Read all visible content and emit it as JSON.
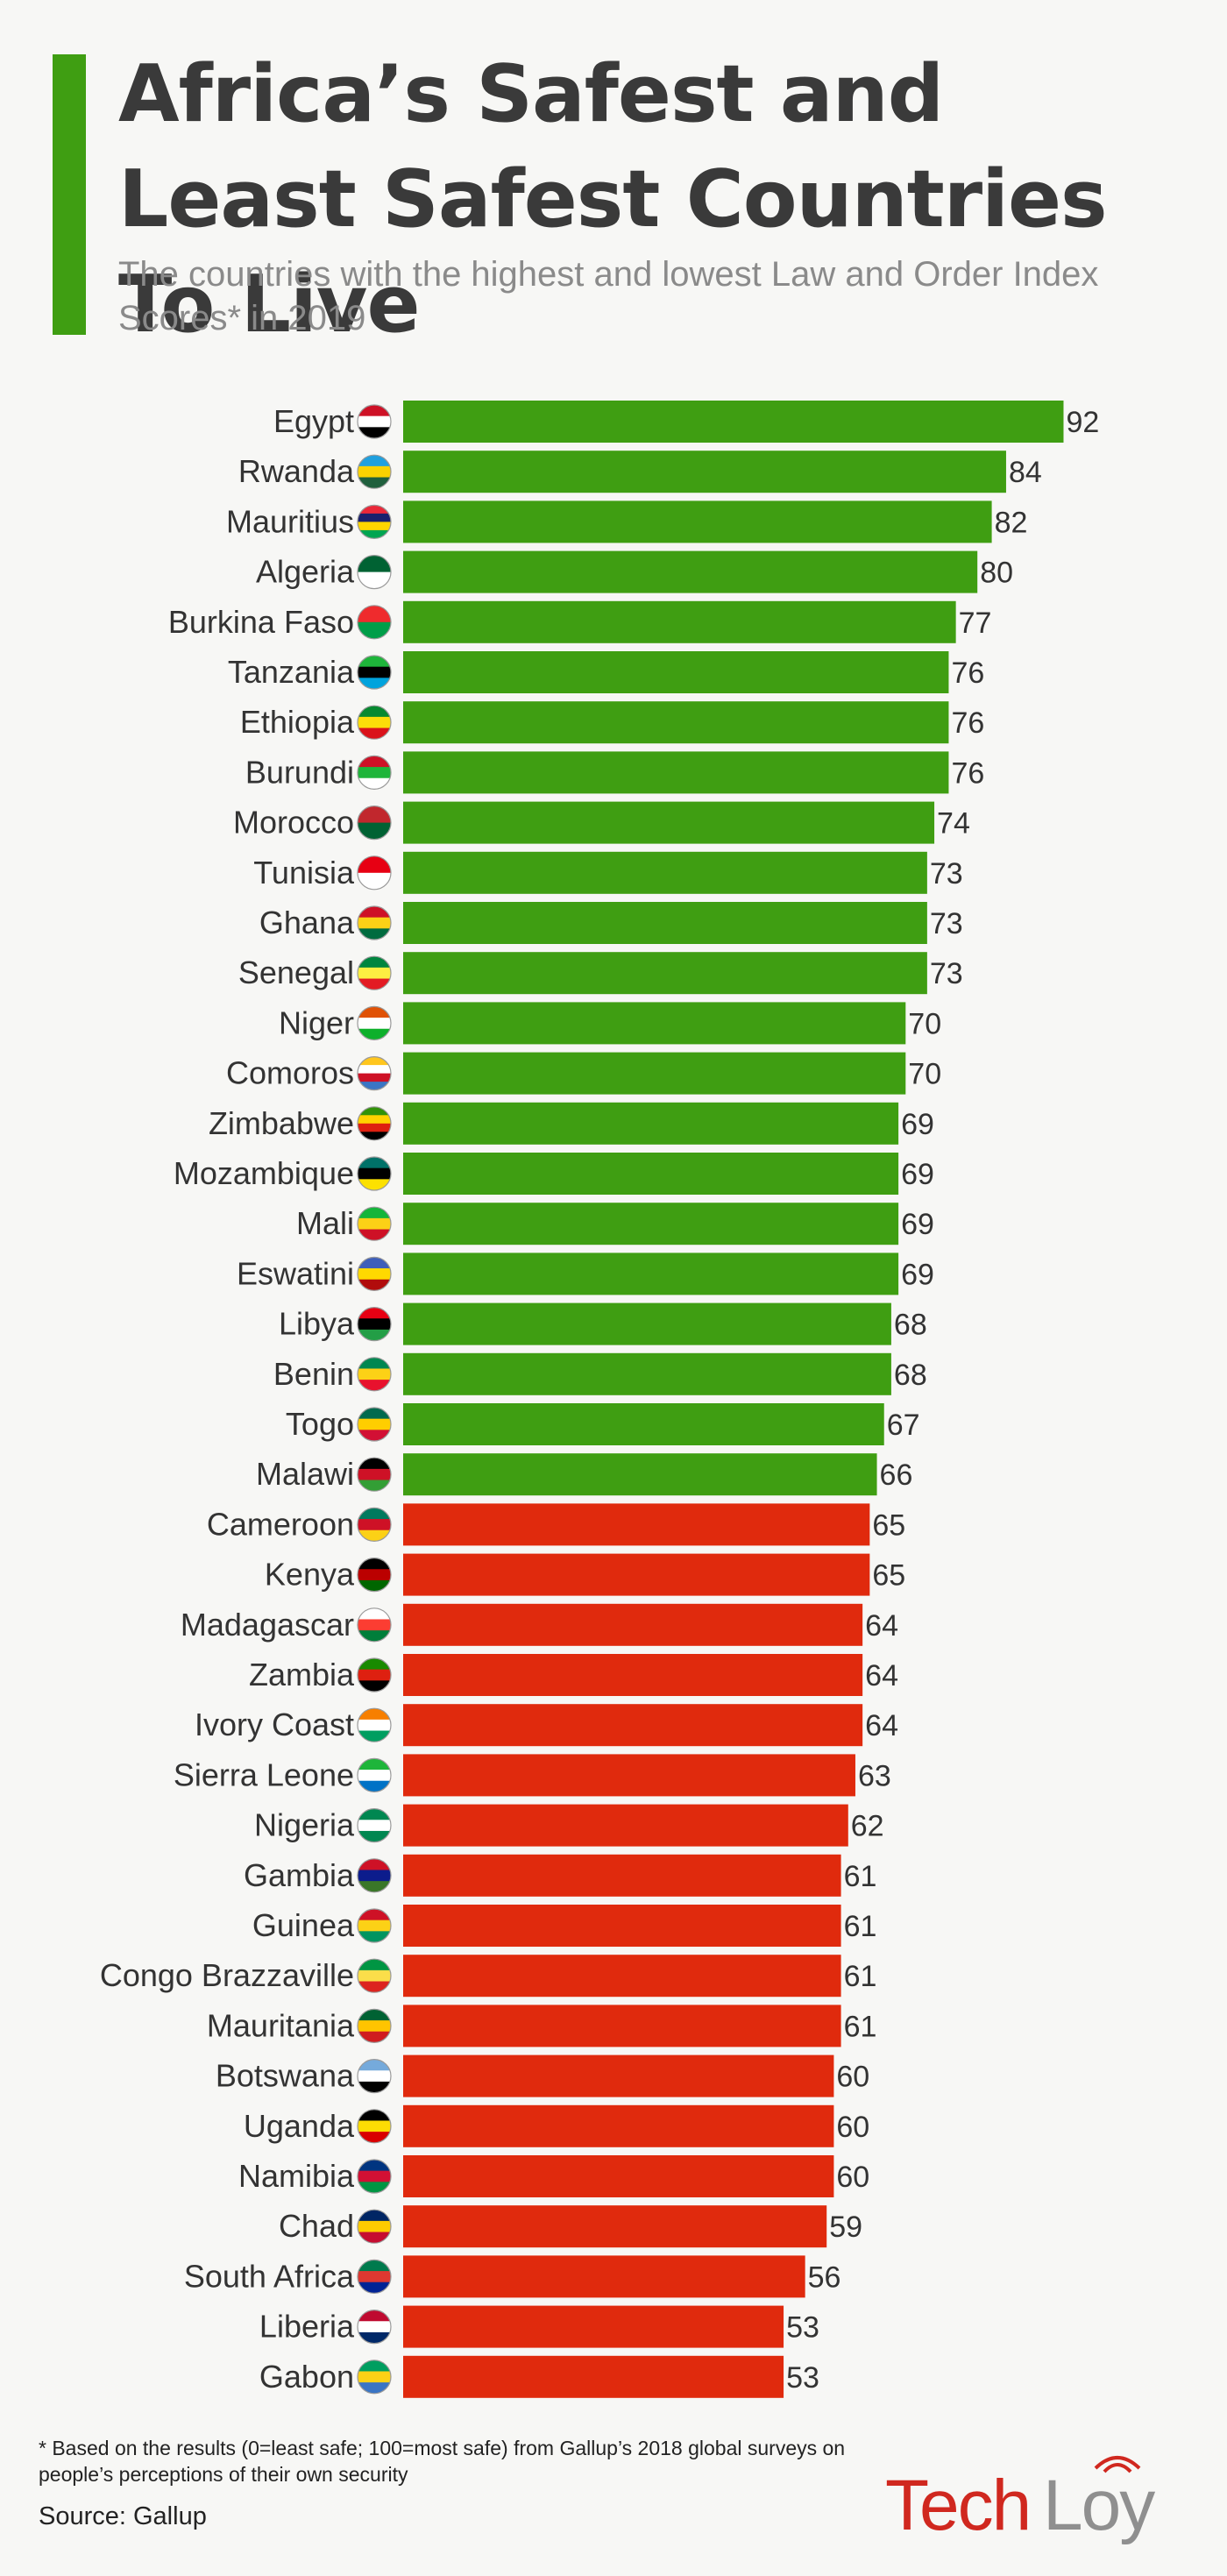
{
  "header": {
    "title": "Africa’s Safest and Least Safest Countries To Live",
    "subtitle": "The countries with the highest and lowest Law and Order Index Scores* in 2019"
  },
  "colors": {
    "accent": "#3f9e12",
    "safe": "#3f9e12",
    "unsafe": "#e02a0d",
    "text": "#333333"
  },
  "chart_data": {
    "type": "bar",
    "orientation": "horizontal",
    "title": "Africa’s Safest and Least Safest Countries To Live",
    "xlabel": "",
    "ylabel": "",
    "xlim": [
      0,
      100
    ],
    "categories": [
      "Egypt",
      "Rwanda",
      "Mauritius",
      "Algeria",
      "Burkina Faso",
      "Tanzania",
      "Ethiopia",
      "Burundi",
      "Morocco",
      "Tunisia",
      "Ghana",
      "Senegal",
      "Niger",
      "Comoros",
      "Zimbabwe",
      "Mozambique",
      "Mali",
      "Eswatini",
      "Libya",
      "Benin",
      "Togo",
      "Malawi",
      "Cameroon",
      "Kenya",
      "Madagascar",
      "Zambia",
      "Ivory Coast",
      "Sierra Leone",
      "Nigeria",
      "Gambia",
      "Guinea",
      "Congo Brazzaville",
      "Mauritania",
      "Botswana",
      "Uganda",
      "Namibia",
      "Chad",
      "South Africa",
      "Liberia",
      "Gabon"
    ],
    "values": [
      92,
      84,
      82,
      80,
      77,
      76,
      76,
      76,
      74,
      73,
      73,
      73,
      70,
      70,
      69,
      69,
      69,
      69,
      68,
      68,
      67,
      66,
      65,
      65,
      64,
      64,
      64,
      63,
      62,
      61,
      61,
      61,
      61,
      60,
      60,
      60,
      59,
      56,
      53,
      53
    ],
    "groups": [
      "safe",
      "safe",
      "safe",
      "safe",
      "safe",
      "safe",
      "safe",
      "safe",
      "safe",
      "safe",
      "safe",
      "safe",
      "safe",
      "safe",
      "safe",
      "safe",
      "safe",
      "safe",
      "safe",
      "safe",
      "safe",
      "safe",
      "unsafe",
      "unsafe",
      "unsafe",
      "unsafe",
      "unsafe",
      "unsafe",
      "unsafe",
      "unsafe",
      "unsafe",
      "unsafe",
      "unsafe",
      "unsafe",
      "unsafe",
      "unsafe",
      "unsafe",
      "unsafe",
      "unsafe",
      "unsafe"
    ],
    "flags": [
      [
        "#ce1126",
        "#ffffff",
        "#000000"
      ],
      [
        "#20a0de",
        "#fad201",
        "#20603d"
      ],
      [
        "#ea2839",
        "#1a206d",
        "#ffd500",
        "#00a551"
      ],
      [
        "#006233",
        "#ffffff"
      ],
      [
        "#ef2b2d",
        "#009e49"
      ],
      [
        "#1eb53a",
        "#000000",
        "#00a3dd"
      ],
      [
        "#078930",
        "#fcdd09",
        "#da121a"
      ],
      [
        "#ce1126",
        "#1eb53a",
        "#ffffff"
      ],
      [
        "#c1272d",
        "#006233"
      ],
      [
        "#e70013",
        "#ffffff"
      ],
      [
        "#ce1126",
        "#fcd116",
        "#006b3f"
      ],
      [
        "#00853f",
        "#fdef42",
        "#e31b23"
      ],
      [
        "#e05206",
        "#ffffff",
        "#0db02b"
      ],
      [
        "#ffc61e",
        "#ffffff",
        "#ce1126",
        "#3a75c4"
      ],
      [
        "#319208",
        "#ffd200",
        "#de2010",
        "#000000"
      ],
      [
        "#007168",
        "#000000",
        "#fce100"
      ],
      [
        "#14b53a",
        "#fcd116",
        "#ce1126"
      ],
      [
        "#3e5eb9",
        "#ffd900",
        "#b10c0c"
      ],
      [
        "#e70013",
        "#000000",
        "#239e46"
      ],
      [
        "#008751",
        "#fcd116",
        "#e8112d"
      ],
      [
        "#006a4e",
        "#ffce00",
        "#d21034"
      ],
      [
        "#000000",
        "#ce1126",
        "#339e35"
      ],
      [
        "#007a5e",
        "#ce1126",
        "#fcd116"
      ],
      [
        "#000000",
        "#bb0000",
        "#006600"
      ],
      [
        "#ffffff",
        "#fc3d32",
        "#007e3a"
      ],
      [
        "#198a00",
        "#de2010",
        "#000000"
      ],
      [
        "#f77f00",
        "#ffffff",
        "#009e60"
      ],
      [
        "#1eb53a",
        "#ffffff",
        "#0072c6"
      ],
      [
        "#008751",
        "#ffffff",
        "#008751"
      ],
      [
        "#ce1126",
        "#0c1c8c",
        "#3a7728"
      ],
      [
        "#ce1126",
        "#fcd116",
        "#009460"
      ],
      [
        "#009543",
        "#fbde4a",
        "#dc241f"
      ],
      [
        "#006233",
        "#ffc400",
        "#d01c1f"
      ],
      [
        "#75aadb",
        "#ffffff",
        "#000000"
      ],
      [
        "#000000",
        "#fcdc04",
        "#d90000"
      ],
      [
        "#003580",
        "#d21034",
        "#009543"
      ],
      [
        "#002664",
        "#fecb00",
        "#c60c30"
      ],
      [
        "#007a4d",
        "#de3831",
        "#002395"
      ],
      [
        "#bf0a30",
        "#ffffff",
        "#002868"
      ],
      [
        "#009e60",
        "#fcd116",
        "#3a75c4"
      ]
    ]
  },
  "footer": {
    "footnote": "* Based on the results (0=least safe; 100=most safe) from Gallup’s 2018 global surveys on people’s perceptions of their own security",
    "source": "Source: Gallup"
  },
  "logo": {
    "part1": "Tech",
    "part2": "Loy",
    "color1": "#d0281f",
    "color2": "#8f8f8f"
  }
}
